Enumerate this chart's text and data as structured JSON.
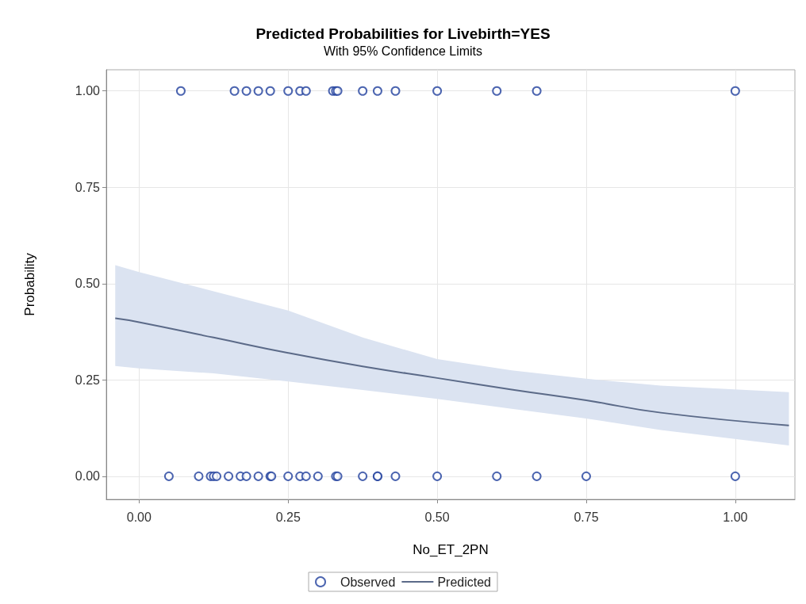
{
  "chart_data": {
    "type": "scatter",
    "title": "Predicted Probabilities for Livebirth=YES",
    "subtitle": "With 95% Confidence Limits",
    "xlabel": "No_ET_2PN",
    "ylabel": "Probability",
    "xlim": [
      -0.055,
      1.1
    ],
    "ylim": [
      -0.06,
      1.055
    ],
    "xticks": [
      {
        "value": 0,
        "label": "0.00"
      },
      {
        "value": 0.25,
        "label": "0.25"
      },
      {
        "value": 0.5,
        "label": "0.50"
      },
      {
        "value": 0.75,
        "label": "0.75"
      },
      {
        "value": 1,
        "label": "1.00"
      }
    ],
    "yticks": [
      {
        "value": 0,
        "label": "0.00"
      },
      {
        "value": 0.25,
        "label": "0.25"
      },
      {
        "value": 0.5,
        "label": "0.50"
      },
      {
        "value": 0.75,
        "label": "0.75"
      },
      {
        "value": 1,
        "label": "1.00"
      }
    ],
    "grid": true,
    "legend": "bottom",
    "series": [
      {
        "name": "Observed",
        "marker": "circle",
        "color": "#1f3f9c",
        "x": [
          0.07,
          0.16,
          0.18,
          0.2,
          0.22,
          0.25,
          0.27,
          0.28,
          0.325,
          0.33,
          0.333,
          0.375,
          0.4,
          0.43,
          0.5,
          0.6,
          0.667,
          1,
          0.05,
          0.1,
          0.12,
          0.125,
          0.13,
          0.15,
          0.17,
          0.18,
          0.2,
          0.22,
          0.222,
          0.25,
          0.27,
          0.28,
          0.3,
          0.33,
          0.333,
          0.375,
          0.4,
          0.4,
          0.43,
          0.5,
          0.6,
          0.667,
          0.75,
          1
        ],
        "values": [
          1,
          1,
          1,
          1,
          1,
          1,
          1,
          1,
          1,
          1,
          1,
          1,
          1,
          1,
          1,
          1,
          1,
          1,
          0,
          0,
          0,
          0,
          0,
          0,
          0,
          0,
          0,
          0,
          0,
          0,
          0,
          0,
          0,
          0,
          0,
          0,
          0,
          0,
          0,
          0,
          0,
          0,
          0,
          0
        ]
      },
      {
        "name": "Predicted",
        "type": "line",
        "marker": "none",
        "color": "#5b6a88",
        "x": [
          -0.04,
          0,
          0.125,
          0.25,
          0.375,
          0.5,
          0.625,
          0.75,
          0.875,
          1.09
        ],
        "values": [
          0.41,
          0.4,
          0.36,
          0.32,
          0.285,
          0.255,
          0.225,
          0.197,
          0.165,
          0.132
        ],
        "lower": [
          0.286,
          0.28,
          0.267,
          0.246,
          0.224,
          0.201,
          0.175,
          0.15,
          0.12,
          0.08
        ],
        "upper": [
          0.548,
          0.53,
          0.48,
          0.43,
          0.36,
          0.304,
          0.275,
          0.253,
          0.235,
          0.218
        ]
      }
    ]
  }
}
